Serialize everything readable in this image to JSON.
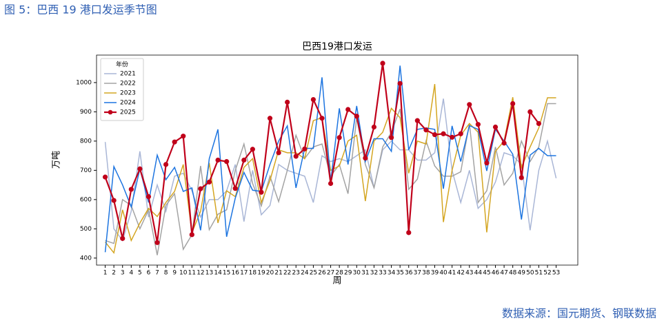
{
  "figure_title": "图 5：巴西 19 港口发运季节图",
  "source": "数据来源：国元期货、钢联数据",
  "chart_data": {
    "type": "line",
    "title": "巴西19港口发运",
    "xlabel": "周",
    "ylabel": "万吨",
    "legend_title": "年份",
    "legend": "upper left",
    "x": [
      1,
      2,
      3,
      4,
      5,
      6,
      7,
      8,
      9,
      10,
      11,
      12,
      13,
      14,
      15,
      16,
      17,
      18,
      19,
      20,
      21,
      22,
      23,
      24,
      25,
      26,
      27,
      28,
      29,
      30,
      31,
      32,
      33,
      34,
      35,
      36,
      37,
      38,
      39,
      40,
      41,
      42,
      43,
      44,
      45,
      46,
      47,
      48,
      49,
      50,
      51,
      52,
      53
    ],
    "xlim": [
      0,
      55.5
    ],
    "xticks": [
      1,
      2,
      3,
      4,
      5,
      6,
      7,
      8,
      9,
      10,
      11,
      12,
      13,
      14,
      15,
      16,
      17,
      18,
      19,
      20,
      21,
      22,
      23,
      24,
      25,
      26,
      27,
      28,
      29,
      30,
      31,
      32,
      33,
      34,
      35,
      36,
      37,
      38,
      39,
      40,
      41,
      42,
      43,
      44,
      45,
      46,
      47,
      48,
      49,
      50,
      51,
      52,
      53
    ],
    "ylim": [
      376,
      1094
    ],
    "yticks": [
      400,
      500,
      600,
      700,
      800,
      900,
      1000
    ],
    "series": [
      {
        "name": "2021",
        "color": "#a9b6d6",
        "values": [
          797,
          500,
          460,
          560,
          765,
          540,
          650,
          560,
          680,
          690,
          630,
          540,
          600,
          600,
          630,
          720,
          525,
          700,
          548,
          580,
          720,
          700,
          690,
          680,
          590,
          750,
          730,
          740,
          730,
          750,
          770,
          640,
          770,
          800,
          770,
          770,
          735,
          735,
          760,
          945,
          700,
          590,
          700,
          570,
          600,
          660,
          760,
          750,
          720,
          495,
          700,
          800,
          673
        ]
      },
      {
        "name": "2022",
        "color": "#a3a3a3",
        "values": [
          460,
          450,
          600,
          580,
          500,
          565,
          410,
          580,
          620,
          430,
          480,
          715,
          497,
          550,
          565,
          700,
          790,
          655,
          578,
          680,
          593,
          700,
          820,
          740,
          780,
          790,
          680,
          720,
          620,
          880,
          720,
          640,
          780,
          830,
          910,
          635,
          670,
          800,
          715,
          680,
          680,
          695,
          860,
          590,
          630,
          780,
          650,
          690,
          800,
          730,
          780,
          928,
          928
        ]
      },
      {
        "name": "2023",
        "color": "#d4a520",
        "values": [
          455,
          418,
          565,
          460,
          520,
          570,
          542,
          590,
          628,
          720,
          487,
          560,
          725,
          520,
          630,
          610,
          710,
          740,
          590,
          665,
          770,
          760,
          760,
          740,
          870,
          880,
          700,
          715,
          800,
          820,
          595,
          800,
          830,
          912,
          880,
          690,
          800,
          790,
          995,
          523,
          700,
          820,
          860,
          830,
          488,
          765,
          800,
          950,
          710,
          780,
          845,
          948,
          948
        ]
      },
      {
        "name": "2024",
        "color": "#1c74e0",
        "values": [
          420,
          713,
          650,
          575,
          705,
          590,
          752,
          668,
          710,
          628,
          640,
          495,
          740,
          840,
          473,
          605,
          693,
          632,
          628,
          720,
          800,
          852,
          640,
          775,
          775,
          1018,
          660,
          912,
          720,
          920,
          730,
          808,
          808,
          765,
          1058,
          770,
          840,
          845,
          840,
          637,
          852,
          730,
          853,
          840,
          698,
          840,
          800,
          755,
          532,
          752,
          775,
          750,
          750
        ]
      },
      {
        "name": "2025",
        "color": "#c0001a",
        "marker": "o",
        "values": [
          677,
          597,
          467,
          635,
          705,
          610,
          453,
          720,
          797,
          817,
          480,
          637,
          660,
          735,
          730,
          638,
          735,
          772,
          625,
          878,
          760,
          933,
          748,
          773,
          942,
          878,
          655,
          812,
          908,
          885,
          742,
          848,
          1066,
          812,
          997,
          487,
          870,
          838,
          822,
          825,
          813,
          825,
          925,
          857,
          725,
          848,
          793,
          928,
          675,
          900,
          860,
          null,
          null
        ]
      }
    ]
  }
}
